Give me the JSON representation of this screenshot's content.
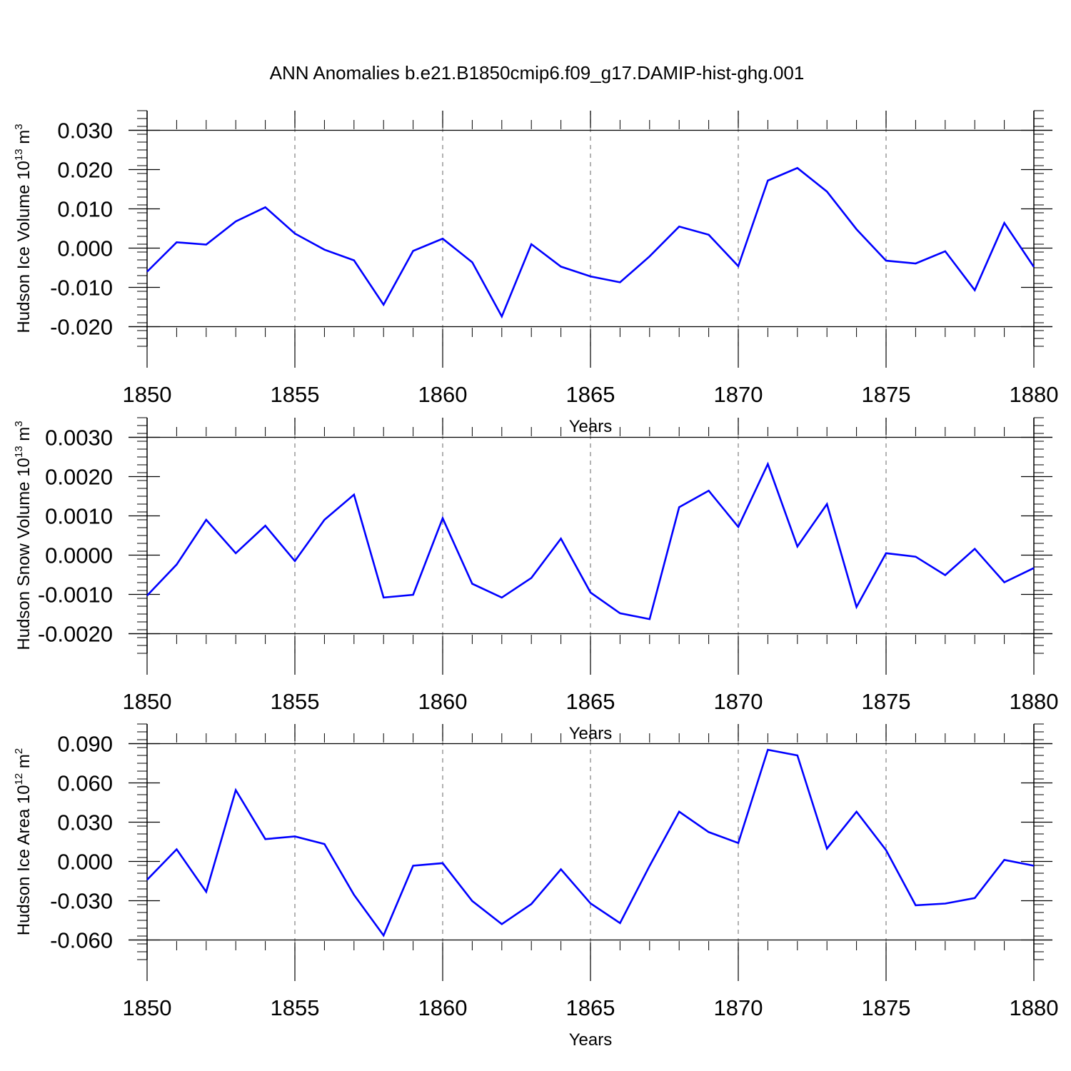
{
  "title": "ANN Anomalies b.e21.B1850cmip6.f09_g17.DAMIP-hist-ghg.001",
  "colors": {
    "line": "#0000ff",
    "axis": "#000000",
    "grid": "#808080"
  },
  "chart_data": [
    {
      "type": "line",
      "ylabel_main": "Hudson Ice Volume 10",
      "ylabel_exp": "13",
      "ylabel_unit": " m",
      "ylabel_unit_exp": "3",
      "xlabel": "Years",
      "xlim": [
        1850,
        1880
      ],
      "ylim": [
        -0.025,
        0.035
      ],
      "xticks": [
        1850,
        1855,
        1860,
        1865,
        1870,
        1875,
        1880
      ],
      "yticks": [
        -0.02,
        -0.01,
        0.0,
        0.01,
        0.02,
        0.03
      ],
      "ytick_labels": [
        "-0.020",
        "-0.010",
        "0.000",
        "0.010",
        "0.020",
        "0.030"
      ],
      "grid": "vertical dashed at major x ticks",
      "series": [
        {
          "name": "Hudson Ice Volume",
          "x": [
            1850,
            1851,
            1852,
            1853,
            1854,
            1855,
            1856,
            1857,
            1858,
            1859,
            1860,
            1861,
            1862,
            1863,
            1864,
            1865,
            1866,
            1867,
            1868,
            1869,
            1870,
            1871,
            1872,
            1873,
            1874,
            1875,
            1876,
            1877,
            1878,
            1879,
            1880
          ],
          "values": [
            -0.006,
            0.0015,
            0.0009,
            0.0068,
            0.0104,
            0.0037,
            -0.0004,
            -0.0031,
            -0.0144,
            -0.0007,
            0.0024,
            -0.0036,
            -0.0174,
            0.001,
            -0.0047,
            -0.0072,
            -0.0087,
            -0.0021,
            0.0055,
            0.0034,
            -0.0046,
            0.0172,
            0.0204,
            0.0144,
            0.0048,
            -0.0032,
            -0.0039,
            -0.0008,
            -0.0107,
            0.0064,
            -0.0048
          ]
        }
      ]
    },
    {
      "type": "line",
      "ylabel_main": "Hudson Snow Volume 10",
      "ylabel_exp": "13",
      "ylabel_unit": " m",
      "ylabel_unit_exp": "3",
      "xlabel": "Years",
      "xlim": [
        1850,
        1880
      ],
      "ylim": [
        -0.0025,
        0.0035
      ],
      "xticks": [
        1850,
        1855,
        1860,
        1865,
        1870,
        1875,
        1880
      ],
      "yticks": [
        -0.002,
        -0.001,
        0.0,
        0.001,
        0.002,
        0.003
      ],
      "ytick_labels": [
        "-0.0020",
        "-0.0010",
        "0.0000",
        "0.0010",
        "0.0020",
        "0.0030"
      ],
      "grid": "vertical dashed at major x ticks",
      "series": [
        {
          "name": "Hudson Snow Volume",
          "x": [
            1850,
            1851,
            1852,
            1853,
            1854,
            1855,
            1856,
            1857,
            1858,
            1859,
            1860,
            1861,
            1862,
            1863,
            1864,
            1865,
            1866,
            1867,
            1868,
            1869,
            1870,
            1871,
            1872,
            1873,
            1874,
            1875,
            1876,
            1877,
            1878,
            1879,
            1880
          ],
          "values": [
            -0.00103,
            -0.00024,
            0.0009,
            5e-05,
            0.00075,
            -0.00015,
            0.0009,
            0.00154,
            -0.00108,
            -0.00101,
            0.00094,
            -0.00073,
            -0.00108,
            -0.00058,
            0.00042,
            -0.00095,
            -0.00148,
            -0.00163,
            0.00122,
            0.00164,
            0.00072,
            0.00232,
            0.00022,
            0.0013,
            -0.00132,
            5e-05,
            -4e-05,
            -0.00051,
            0.00016,
            -0.00069,
            -0.00033
          ]
        }
      ]
    },
    {
      "type": "line",
      "ylabel_main": "Hudson Ice Area 10",
      "ylabel_exp": "12",
      "ylabel_unit": " m",
      "ylabel_unit_exp": "2",
      "xlabel": "Years",
      "xlim": [
        1850,
        1880
      ],
      "ylim": [
        -0.075,
        0.105
      ],
      "xticks": [
        1850,
        1855,
        1860,
        1865,
        1870,
        1875,
        1880
      ],
      "yticks": [
        -0.06,
        -0.03,
        0.0,
        0.03,
        0.06,
        0.09
      ],
      "ytick_labels": [
        "-0.060",
        "-0.030",
        "0.000",
        "0.030",
        "0.060",
        "0.090"
      ],
      "grid": "vertical dashed at major x ticks",
      "series": [
        {
          "name": "Hudson Ice Area",
          "x": [
            1850,
            1851,
            1852,
            1853,
            1854,
            1855,
            1856,
            1857,
            1858,
            1859,
            1860,
            1861,
            1862,
            1863,
            1864,
            1865,
            1866,
            1867,
            1868,
            1869,
            1870,
            1871,
            1872,
            1873,
            1874,
            1875,
            1876,
            1877,
            1878,
            1879,
            1880
          ],
          "values": [
            -0.014,
            0.0093,
            -0.0232,
            0.0545,
            0.0171,
            0.0191,
            0.0133,
            -0.0255,
            -0.0565,
            -0.0033,
            -0.0013,
            -0.0302,
            -0.0479,
            -0.0325,
            -0.006,
            -0.032,
            -0.0471,
            -0.0034,
            0.038,
            0.0224,
            0.0141,
            0.0853,
            0.081,
            0.0098,
            0.038,
            0.0086,
            -0.0335,
            -0.0322,
            -0.028,
            0.0012,
            -0.0033
          ]
        }
      ]
    }
  ]
}
